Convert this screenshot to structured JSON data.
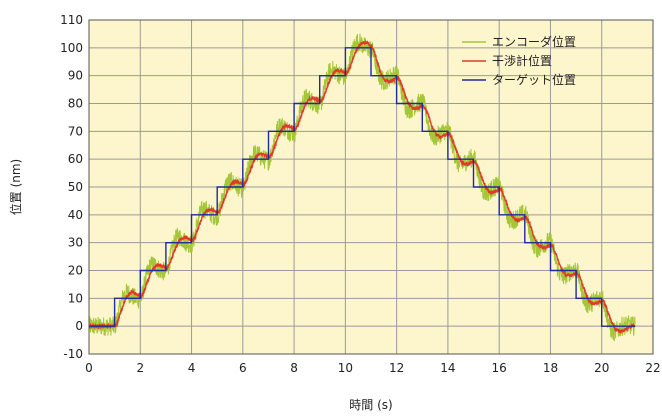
{
  "chart_data": {
    "type": "line",
    "title": "",
    "xlabel": "時間 (s)",
    "ylabel": "位置 (nm)",
    "xlim": [
      0,
      22
    ],
    "ylim": [
      -10,
      110
    ],
    "x_ticks": [
      "0",
      "2",
      "4",
      "6",
      "8",
      "10",
      "12",
      "14",
      "16",
      "18",
      "20",
      "22"
    ],
    "y_ticks": [
      "-10",
      "0",
      "10",
      "20",
      "30",
      "40",
      "50",
      "60",
      "70",
      "80",
      "90",
      "100",
      "110"
    ],
    "grid": true,
    "legend_position": "top-right",
    "background_color": "#fdf6cc",
    "series": [
      {
        "name": "エンコーダ位置",
        "color": "#a4c639",
        "noise": 3.5,
        "lag": 0.25,
        "x": [
          0,
          1,
          1,
          2,
          2,
          3,
          3,
          4,
          4,
          5,
          5,
          6,
          6,
          7,
          7,
          8,
          8,
          9,
          9,
          10,
          10,
          11,
          11,
          12,
          12,
          13,
          13,
          14,
          14,
          15,
          15,
          16,
          16,
          17,
          17,
          18,
          18,
          19,
          19,
          20,
          20,
          21,
          21,
          21.3
        ],
        "values": [
          0,
          0,
          10,
          10,
          20,
          20,
          30,
          30,
          40,
          40,
          50,
          50,
          60,
          60,
          70,
          70,
          80,
          80,
          90,
          90,
          100,
          100,
          90,
          90,
          80,
          80,
          70,
          70,
          60,
          60,
          50,
          50,
          40,
          40,
          30,
          30,
          20,
          20,
          10,
          10,
          0,
          0,
          0,
          0
        ]
      },
      {
        "name": "干渉計位置",
        "color": "#e03a2a",
        "noise": 0.6,
        "lag": 0.35,
        "x": [
          0,
          1,
          1,
          2,
          2,
          3,
          3,
          4,
          4,
          5,
          5,
          6,
          6,
          7,
          7,
          8,
          8,
          9,
          9,
          10,
          10,
          11,
          11,
          12,
          12,
          13,
          13,
          14,
          14,
          15,
          15,
          16,
          16,
          17,
          17,
          18,
          18,
          19,
          19,
          20,
          20,
          21,
          21,
          21.3
        ],
        "values": [
          0,
          0,
          10,
          10,
          20,
          20,
          30,
          30,
          40,
          40,
          50,
          50,
          60,
          60,
          70,
          70,
          80,
          80,
          90,
          90,
          100,
          100,
          90,
          90,
          80,
          80,
          70,
          70,
          60,
          60,
          50,
          50,
          40,
          40,
          30,
          30,
          20,
          20,
          10,
          10,
          0,
          0,
          0,
          0
        ]
      },
      {
        "name": "ターゲット位置",
        "color": "#1f2a9c",
        "noise": 0,
        "lag": 0,
        "x": [
          0,
          1,
          1,
          2,
          2,
          3,
          3,
          4,
          4,
          5,
          5,
          6,
          6,
          7,
          7,
          8,
          8,
          9,
          9,
          10,
          10,
          11,
          11,
          12,
          12,
          13,
          13,
          14,
          14,
          15,
          15,
          16,
          16,
          17,
          17,
          18,
          18,
          19,
          19,
          20,
          20,
          21,
          21,
          21.3
        ],
        "values": [
          0,
          0,
          10,
          10,
          20,
          20,
          30,
          30,
          40,
          40,
          50,
          50,
          60,
          60,
          70,
          70,
          80,
          80,
          90,
          90,
          100,
          100,
          90,
          90,
          80,
          80,
          70,
          70,
          60,
          60,
          50,
          50,
          40,
          40,
          30,
          30,
          20,
          20,
          10,
          10,
          0,
          0,
          0,
          0
        ]
      }
    ]
  }
}
